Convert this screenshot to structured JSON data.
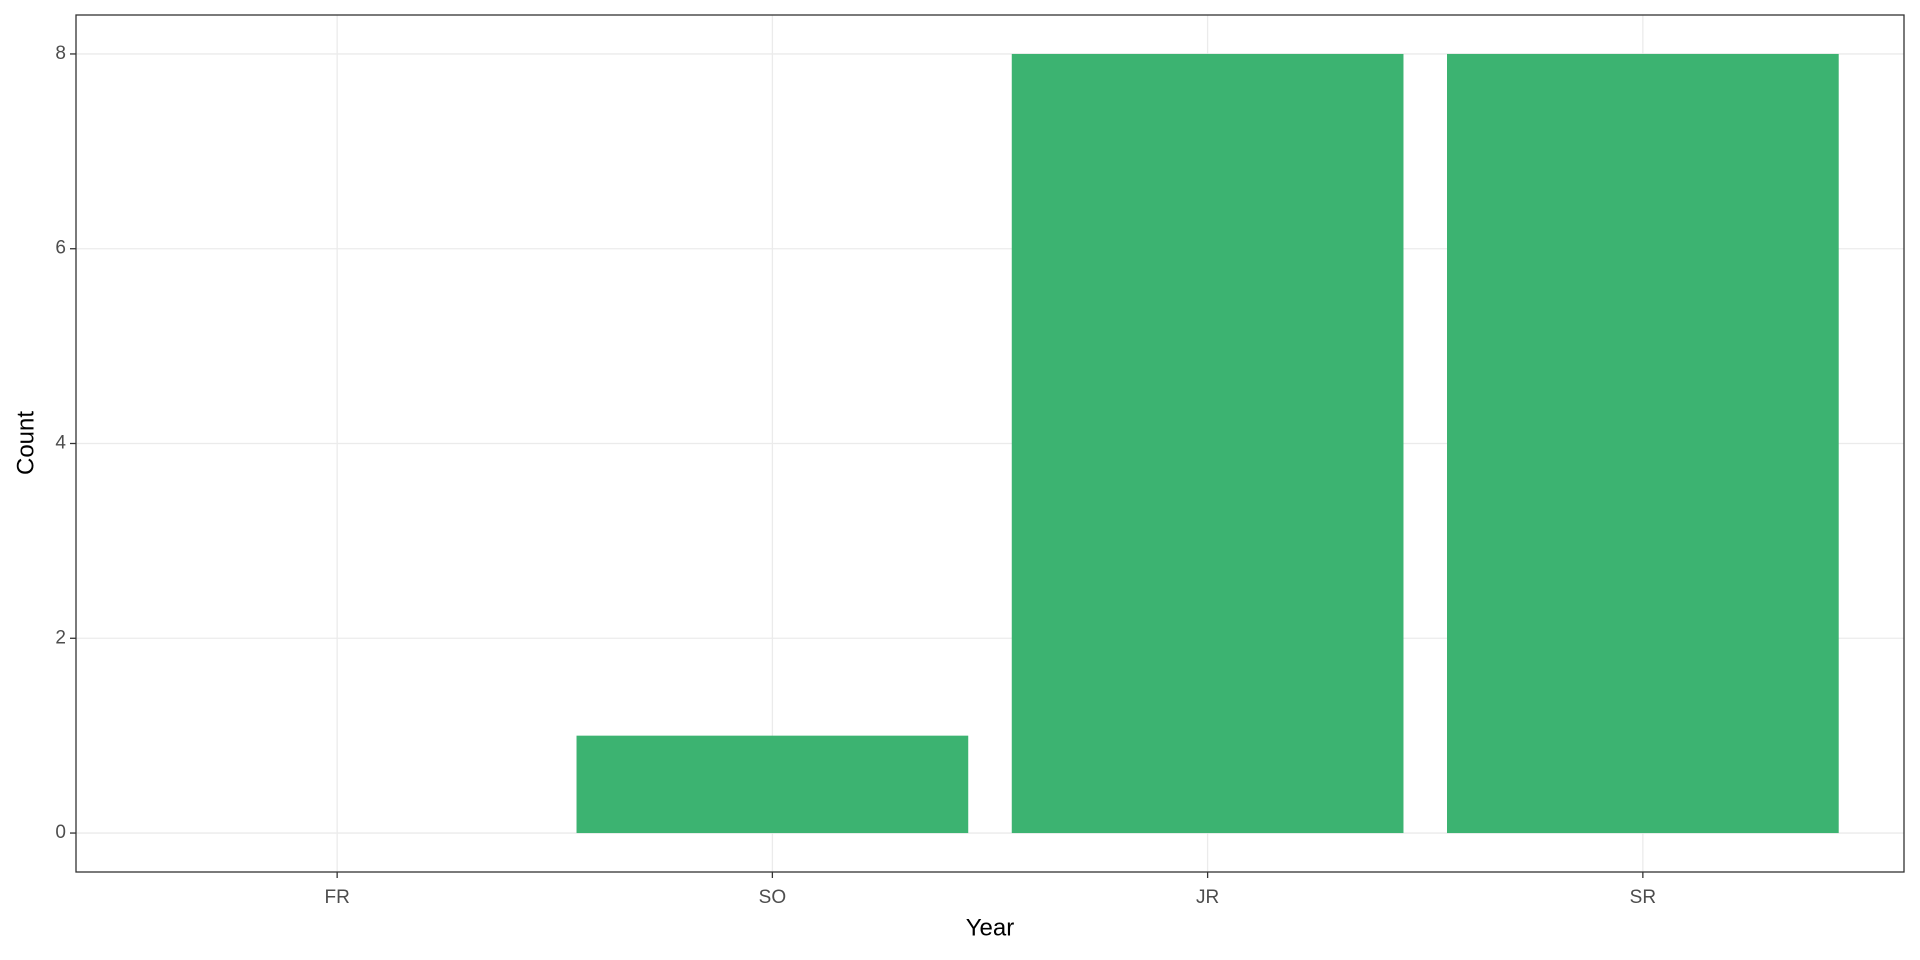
{
  "chart_data": {
    "type": "bar",
    "x_label": "Year",
    "y_label": "Count",
    "categories": [
      "FR",
      "SO",
      "JR",
      "SR"
    ],
    "values": [
      0,
      1,
      8,
      8
    ],
    "color": "#3cb371",
    "ylim": [
      -0.4,
      8.4
    ],
    "yticks": [
      0,
      2,
      4,
      6,
      8
    ],
    "grid": true
  }
}
